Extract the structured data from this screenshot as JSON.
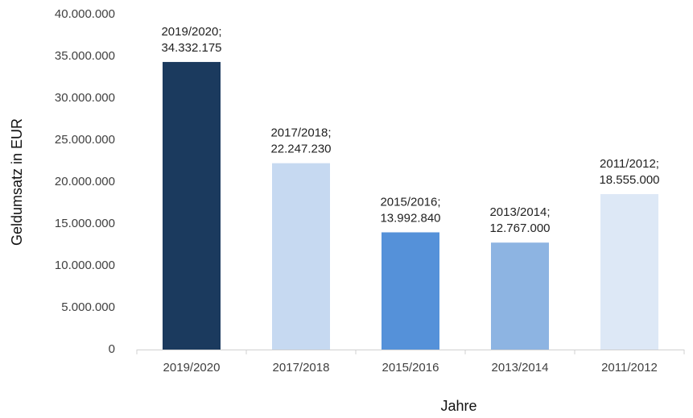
{
  "chart_data": {
    "type": "bar",
    "categories": [
      "2019/2020",
      "2017/2018",
      "2015/2016",
      "2013/2014",
      "2011/2012"
    ],
    "values": [
      34332175,
      22247230,
      13992840,
      12767000,
      18555000
    ],
    "value_labels": [
      "2019/2020;\n34.332.175",
      "2017/2018;\n22.247.230",
      "2015/2016;\n13.992.840",
      "2013/2014;\n12.767.000",
      "2011/2012;\n18.555.000"
    ],
    "colors": [
      "#1b3a5e",
      "#c6d9f1",
      "#5591d9",
      "#8db4e2",
      "#dde8f6"
    ],
    "ylim": [
      0,
      40000000
    ],
    "yticks": [
      0,
      {
        "value": 5000000,
        "label": "5.000.000"
      },
      {
        "value": 10000000,
        "label": "10.000.000"
      },
      {
        "value": 15000000,
        "label": "15.000.000"
      },
      {
        "value": 20000000,
        "label": "20.000.000"
      },
      {
        "value": 25000000,
        "label": "25.000.000"
      },
      {
        "value": 30000000,
        "label": "30.000.000"
      },
      {
        "value": 35000000,
        "label": "35.000.000"
      },
      {
        "value": 40000000,
        "label": "40.000.000"
      }
    ],
    "ylabel": "Geldumsatz in EUR",
    "xlabel": "Jahre",
    "grid": false
  }
}
